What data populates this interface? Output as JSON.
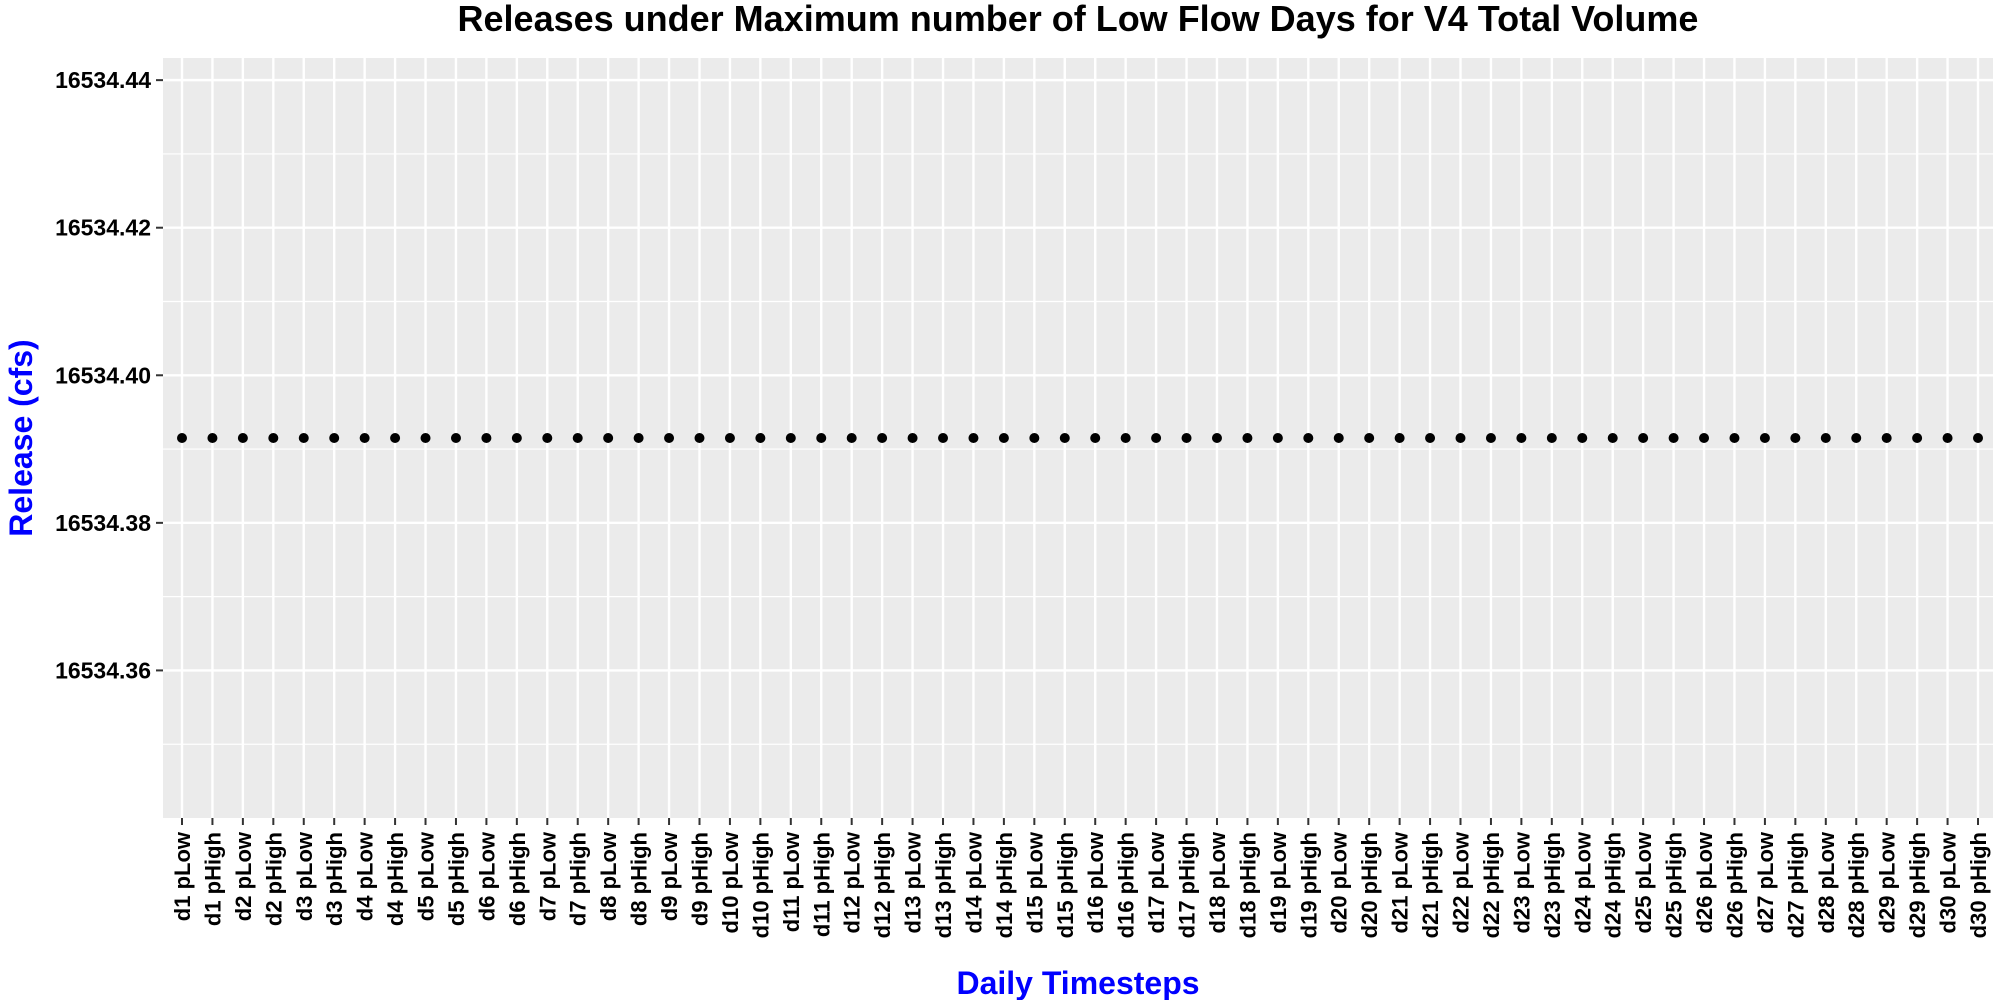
{
  "chart_data": {
    "type": "scatter",
    "title": "Releases under Maximum number of Low Flow Days for V4 Total Volume",
    "xlabel": "Daily Timesteps",
    "ylabel": "Release (cfs)",
    "ylim": [
      16534.34,
      16534.443
    ],
    "yticks": [
      "16534.36",
      "16534.38",
      "16534.40",
      "16534.42",
      "16534.44"
    ],
    "ytick_values": [
      16534.36,
      16534.38,
      16534.4,
      16534.42,
      16534.44
    ],
    "categories": [
      "d1 pLow",
      "d1 pHigh",
      "d2 pLow",
      "d2 pHigh",
      "d3 pLow",
      "d3 pHigh",
      "d4 pLow",
      "d4 pHigh",
      "d5 pLow",
      "d5 pHigh",
      "d6 pLow",
      "d6 pHigh",
      "d7 pLow",
      "d7 pHigh",
      "d8 pLow",
      "d8 pHigh",
      "d9 pLow",
      "d9 pHigh",
      "d10 pLow",
      "d10 pHigh",
      "d11 pLow",
      "d11 pHigh",
      "d12 pLow",
      "d12 pHigh",
      "d13 pLow",
      "d13 pHigh",
      "d14 pLow",
      "d14 pHigh",
      "d15 pLow",
      "d15 pHigh",
      "d16 pLow",
      "d16 pHigh",
      "d17 pLow",
      "d17 pHigh",
      "d18 pLow",
      "d18 pHigh",
      "d19 pLow",
      "d19 pHigh",
      "d20 pLow",
      "d20 pHigh",
      "d21 pLow",
      "d21 pHigh",
      "d22 pLow",
      "d22 pHigh",
      "d23 pLow",
      "d23 pHigh",
      "d24 pLow",
      "d24 pHigh",
      "d25 pLow",
      "d25 pHigh",
      "d26 pLow",
      "d26 pHigh",
      "d27 pLow",
      "d27 pHigh",
      "d28 pLow",
      "d28 pHigh",
      "d29 pLow",
      "d29 pHigh",
      "d30 pLow",
      "d30 pHigh"
    ],
    "values": [
      16534.3915,
      16534.3915,
      16534.3915,
      16534.3915,
      16534.3915,
      16534.3915,
      16534.3915,
      16534.3915,
      16534.3915,
      16534.3915,
      16534.3915,
      16534.3915,
      16534.3915,
      16534.3915,
      16534.3915,
      16534.3915,
      16534.3915,
      16534.3915,
      16534.3915,
      16534.3915,
      16534.3915,
      16534.3915,
      16534.3915,
      16534.3915,
      16534.3915,
      16534.3915,
      16534.3915,
      16534.3915,
      16534.3915,
      16534.3915,
      16534.3915,
      16534.3915,
      16534.3915,
      16534.3915,
      16534.3915,
      16534.3915,
      16534.3915,
      16534.3915,
      16534.3915,
      16534.3915,
      16534.3915,
      16534.3915,
      16534.3915,
      16534.3915,
      16534.3915,
      16534.3915,
      16534.3915,
      16534.3915,
      16534.3915,
      16534.3915,
      16534.3915,
      16534.3915,
      16534.3915,
      16534.3915,
      16534.3915,
      16534.3915,
      16534.3915,
      16534.3915,
      16534.3915,
      16534.3915
    ],
    "grid": true,
    "legend": "none",
    "colors": {
      "panel": "#ebebeb",
      "grid": "#ffffff",
      "point": "#000000",
      "axis_title": "#0000ff",
      "text": "#000000"
    }
  }
}
